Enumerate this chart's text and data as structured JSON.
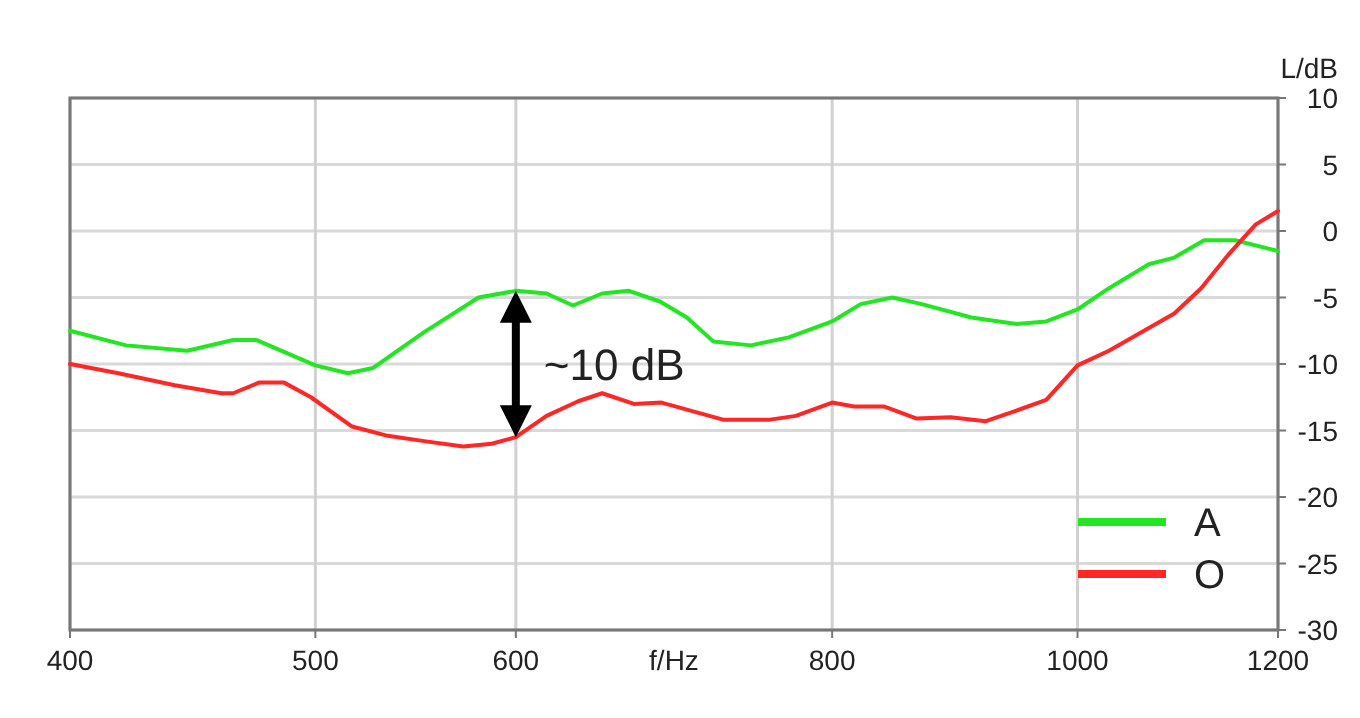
{
  "chart_data": {
    "type": "line",
    "xlabel": "f/Hz",
    "ylabel": "L/dB",
    "log": "x",
    "xlim": [
      400,
      1200
    ],
    "xticks": [
      400,
      500,
      600,
      800,
      1000,
      1200
    ],
    "ylim": [
      -30,
      10
    ],
    "yticks": [
      10,
      5,
      0,
      -5,
      -10,
      -15,
      -20,
      -25,
      -30
    ],
    "grid": true,
    "legend": "bottom right",
    "marker": "none",
    "line_style": "solid",
    "annotations": [
      "~10 dB"
    ],
    "series": [
      {
        "name": "A",
        "color": "#22e622",
        "x": [
          400,
          421,
          445,
          464,
          474,
          500,
          515,
          527,
          552,
          580,
          600,
          617,
          632,
          649,
          665,
          684,
          701,
          718,
          743,
          769,
          800,
          821,
          845,
          868,
          908,
          946,
          972,
          1000,
          1029,
          1067,
          1092,
          1122,
          1154,
          1200
        ],
        "values": [
          -7.5,
          -8.6,
          -9.0,
          -8.2,
          -8.2,
          -10.1,
          -10.7,
          -10.3,
          -7.6,
          -5.0,
          -4.5,
          -4.7,
          -5.6,
          -4.7,
          -4.5,
          -5.3,
          -6.5,
          -8.3,
          -8.6,
          -8.0,
          -6.8,
          -5.5,
          -5.0,
          -5.5,
          -6.5,
          -7.0,
          -6.8,
          -5.9,
          -4.3,
          -2.5,
          -2.0,
          -0.7,
          -0.7,
          -1.5
        ]
      },
      {
        "name": "O",
        "color": "#ff2626",
        "x": [
          400,
          418,
          440,
          459,
          464,
          475,
          486,
          498,
          517,
          534,
          552,
          572,
          587,
          600,
          617,
          635,
          649,
          668,
          685,
          725,
          755,
          774,
          800,
          816,
          839,
          864,
          891,
          920,
          946,
          972,
          1000,
          1029,
          1067,
          1092,
          1119,
          1148,
          1176,
          1200
        ],
        "values": [
          -10.0,
          -10.7,
          -11.6,
          -12.2,
          -12.2,
          -11.4,
          -11.4,
          -12.5,
          -14.7,
          -15.4,
          -15.8,
          -16.2,
          -16.0,
          -15.5,
          -13.9,
          -12.8,
          -12.2,
          -13.0,
          -12.9,
          -14.2,
          -14.2,
          -13.9,
          -12.9,
          -13.2,
          -13.2,
          -14.1,
          -14.0,
          -14.3,
          -13.5,
          -12.7,
          -10.1,
          -9.0,
          -7.3,
          -6.2,
          -4.3,
          -1.7,
          0.5,
          1.5
        ]
      }
    ]
  }
}
